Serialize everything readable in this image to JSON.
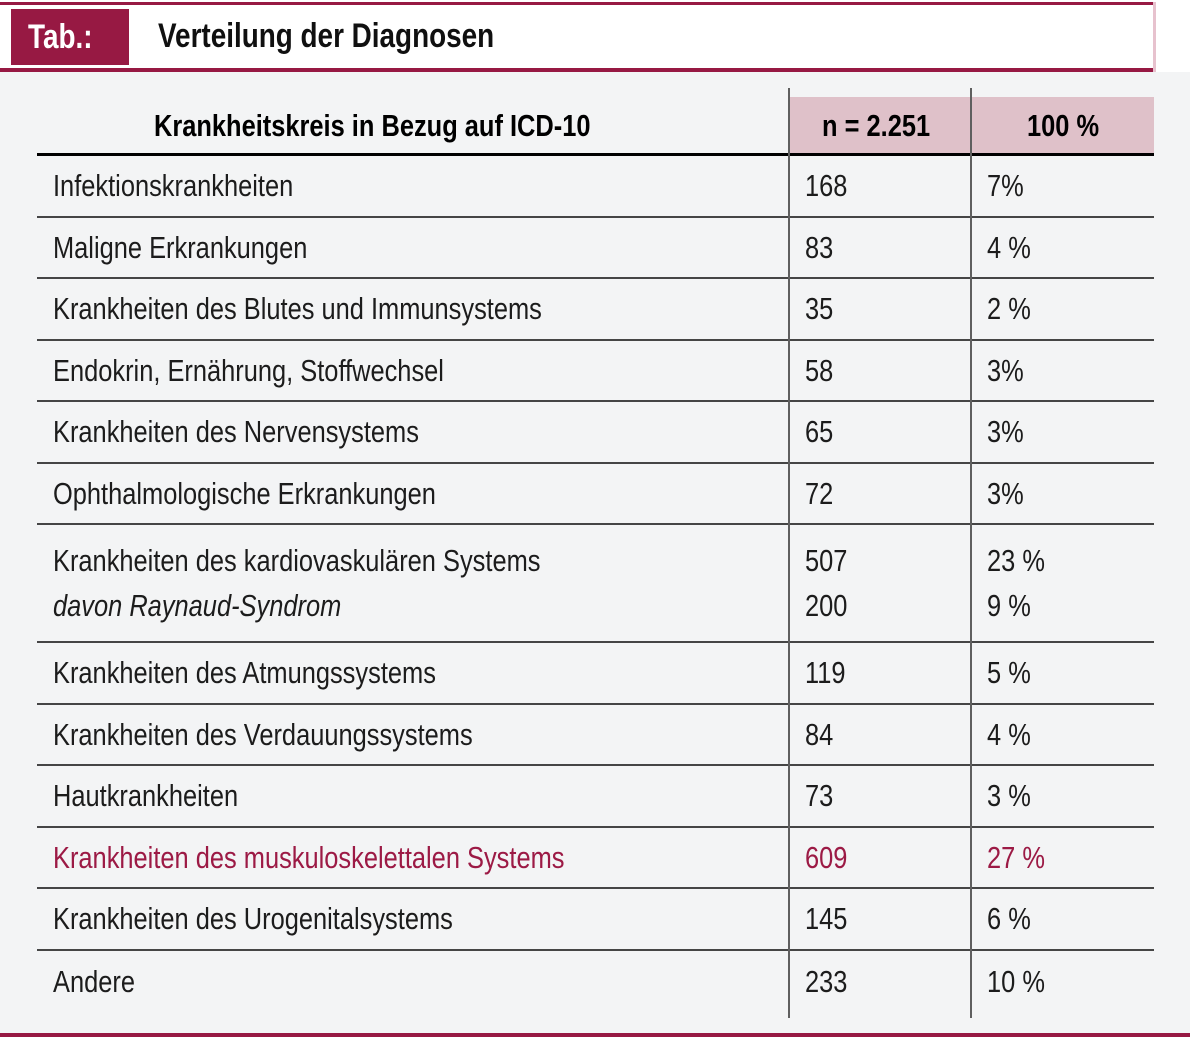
{
  "colors": {
    "accent_maroon": "#971943",
    "header_cell_pink": "#dfc1c9",
    "panel_gray": "#f3f4f5",
    "highlight_text": "#9c1a45"
  },
  "banner": {
    "tag_label": "Tab.:",
    "title": "Verteilung der Diagnosen"
  },
  "table": {
    "header": {
      "col_diagnosis": "Krankheitskreis in Bezug auf ICD-10",
      "col_count": "n = 2.251",
      "col_percent": "100 %"
    },
    "rows": [
      {
        "label": "Infektionskrankheiten",
        "n": "168",
        "pct": "7%"
      },
      {
        "label": "Maligne Erkrankungen",
        "n": "83",
        "pct": "4 %"
      },
      {
        "label": "Krankheiten des Blutes und Immunsystems",
        "n": "35",
        "pct": "2 %"
      },
      {
        "label": "Endokrin, Ernährung, Stoffwechsel",
        "n": "58",
        "pct": "3%"
      },
      {
        "label": "Krankheiten des Nervensystems",
        "n": "65",
        "pct": "3%"
      },
      {
        "label": "Ophthalmologische Erkrankungen",
        "n": "72",
        "pct": "3%"
      },
      {
        "label": "Krankheiten des kardiovaskulären Systems",
        "sub_label": "davon Raynaud-Syndrom",
        "n": "507",
        "sub_n": "200",
        "pct": "23 %",
        "sub_pct": "9 %"
      },
      {
        "label": "Krankheiten des Atmungssystems",
        "n": "119",
        "pct": "5 %"
      },
      {
        "label": "Krankheiten des Verdauungssystems",
        "n": "84",
        "pct": "4 %"
      },
      {
        "label": "Hautkrankheiten",
        "n": "73",
        "pct": "3 %"
      },
      {
        "label": "Krankheiten des muskuloskelettalen Systems",
        "n": "609",
        "pct": "27 %",
        "highlight": true
      },
      {
        "label": "Krankheiten des Urogenitalsystems",
        "n": "145",
        "pct": "6 %"
      },
      {
        "label": "Andere",
        "n": "233",
        "pct": "10 %"
      }
    ]
  }
}
